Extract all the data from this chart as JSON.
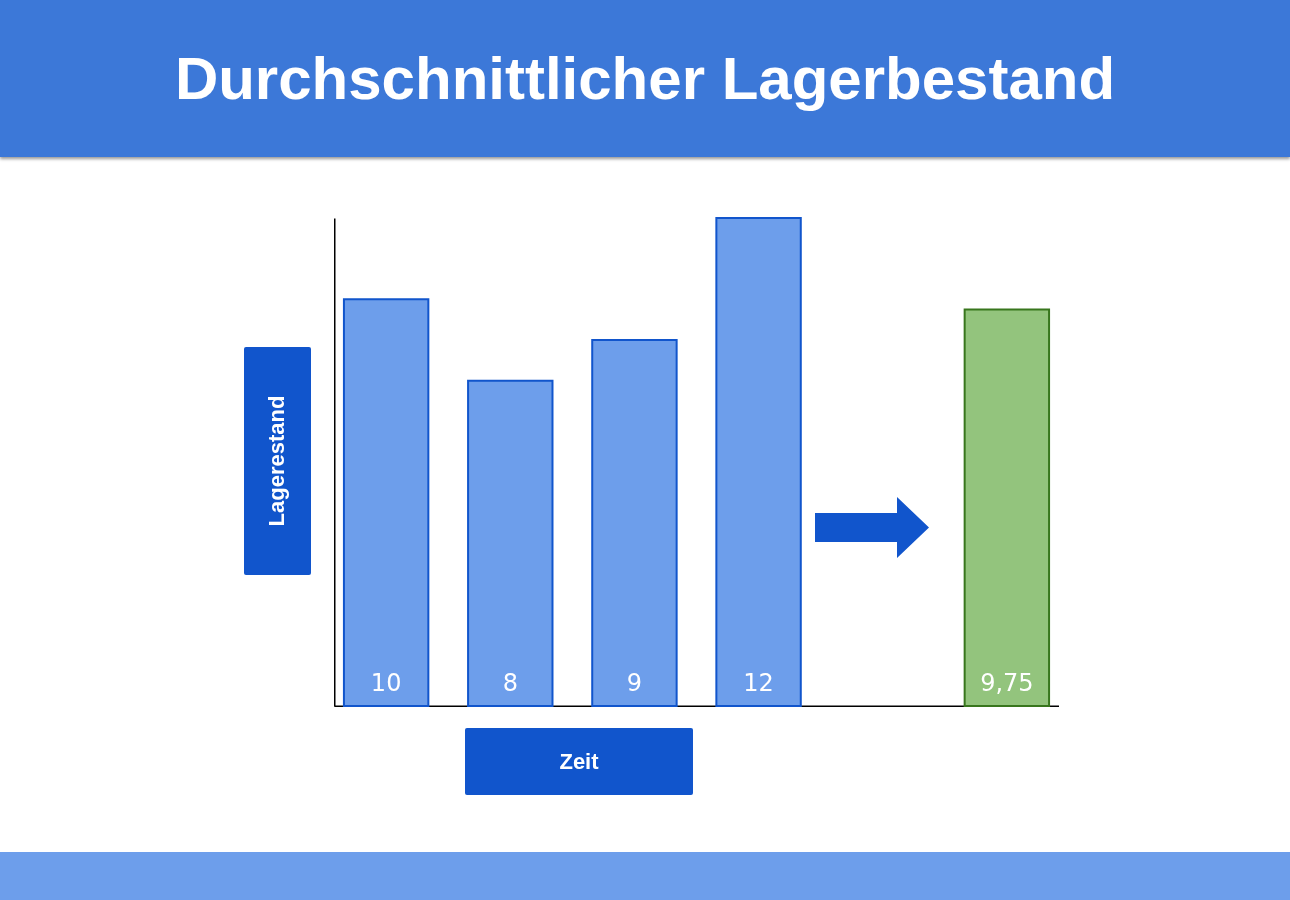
{
  "chart_data": {
    "type": "bar",
    "title": "Durchschnittlicher Lagerbestand",
    "xlabel": "Zeit",
    "ylabel": "Lagerestand",
    "categories": [
      null,
      null,
      null,
      null,
      null
    ],
    "values": [
      10,
      8,
      9,
      12,
      9.75
    ],
    "colors": [
      "#6d9eeb",
      "#6d9eeb",
      "#6d9eeb",
      "#6d9eeb",
      "#93c47d"
    ],
    "value_labels": [
      "10",
      "8",
      "9",
      "12",
      "9,75"
    ],
    "tick_labels": false
  }
}
